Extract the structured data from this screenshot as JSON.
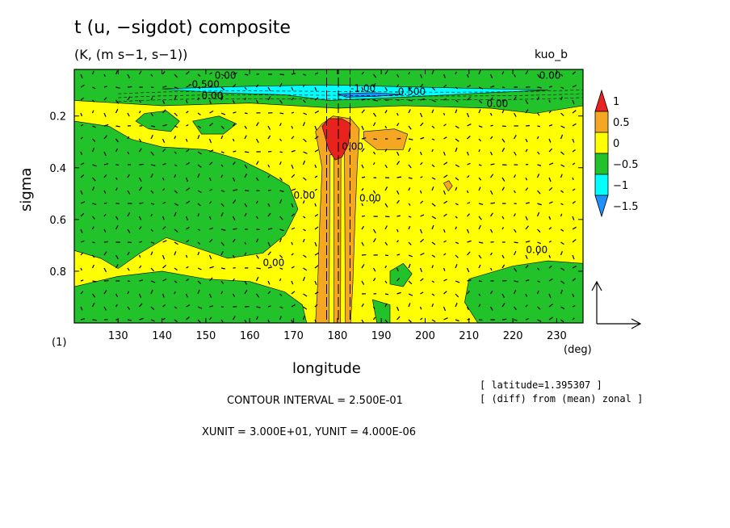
{
  "title": "t (u, −sigdot) composite",
  "subtitle": "(K, (m s−1, s−1))",
  "run_label": "kuo_b",
  "panel_label": "(1)",
  "xunit_label": "(deg)",
  "xlabel": "longitude",
  "ylabel": "sigma",
  "info_latitude": "[ latitude=1.395307 ]",
  "info_diff": "[ (diff) from (mean) zonal ]",
  "contour_interval": "CONTOUR INTERVAL = 2.500E-01",
  "units_line": "XUNIT = 3.000E+01, YUNIT = 4.000E-06",
  "colors": {
    "red": "#e8231e",
    "orange": "#f5a623",
    "yellow": "#ffff00",
    "green": "#22c22a",
    "cyan": "#00ffff",
    "blue": "#1e90ff"
  },
  "chart_data": {
    "type": "heatmap",
    "xlim": [
      120,
      236
    ],
    "ylim": [
      1.0,
      0.02
    ],
    "x_ticks": [
      "130",
      "140",
      "150",
      "160",
      "170",
      "180",
      "190",
      "200",
      "210",
      "220",
      "230"
    ],
    "x_tick_values": [
      130,
      140,
      150,
      160,
      170,
      180,
      190,
      200,
      210,
      220,
      230
    ],
    "y_ticks": [
      "0.2",
      "0.4",
      "0.6",
      "0.8"
    ],
    "y_tick_values": [
      0.2,
      0.4,
      0.6,
      0.8
    ],
    "colorbar_labels": [
      "1",
      "0.5",
      "0",
      "−0.5",
      "−1",
      "−1.5"
    ],
    "colorbar_levels": [
      1.0,
      0.5,
      0.0,
      -0.5,
      -1.0,
      -1.5
    ],
    "contour_labels": [
      "0.00",
      "-0.500",
      "0.00",
      "-1.00",
      "-0.500",
      "0.00",
      "0.00",
      "0.00",
      "0.00",
      "0.00",
      "0.00",
      "0.00"
    ],
    "regions": [
      {
        "level": "yellow",
        "poly": [
          [
            120,
            0.02
          ],
          [
            236,
            0.02
          ],
          [
            236,
            1.0
          ],
          [
            120,
            1.0
          ]
        ]
      },
      {
        "level": "green",
        "poly": [
          [
            120,
            0.02
          ],
          [
            236,
            0.02
          ],
          [
            236,
            0.16
          ],
          [
            225,
            0.19
          ],
          [
            215,
            0.17
          ],
          [
            195,
            0.16
          ],
          [
            180,
            0.17
          ],
          [
            160,
            0.15
          ],
          [
            140,
            0.16
          ],
          [
            120,
            0.14
          ]
        ]
      },
      {
        "level": "green",
        "poly": [
          [
            120,
            0.22
          ],
          [
            128,
            0.24
          ],
          [
            133,
            0.29
          ],
          [
            140,
            0.32
          ],
          [
            150,
            0.33
          ],
          [
            158,
            0.37
          ],
          [
            164,
            0.42
          ],
          [
            169,
            0.47
          ],
          [
            171,
            0.56
          ],
          [
            168,
            0.66
          ],
          [
            163,
            0.73
          ],
          [
            155,
            0.75
          ],
          [
            148,
            0.71
          ],
          [
            141,
            0.67
          ],
          [
            135,
            0.73
          ],
          [
            130,
            0.79
          ],
          [
            126,
            0.75
          ],
          [
            120,
            0.72
          ]
        ]
      },
      {
        "level": "green",
        "poly": [
          [
            120,
            0.86
          ],
          [
            130,
            0.82
          ],
          [
            140,
            0.8
          ],
          [
            150,
            0.83
          ],
          [
            160,
            0.84
          ],
          [
            168,
            0.88
          ],
          [
            172,
            0.93
          ],
          [
            173,
            1.0
          ],
          [
            120,
            1.0
          ]
        ]
      },
      {
        "level": "green",
        "poly": [
          [
            136,
            0.19
          ],
          [
            141,
            0.18
          ],
          [
            144,
            0.22
          ],
          [
            142,
            0.26
          ],
          [
            137,
            0.25
          ],
          [
            134,
            0.22
          ]
        ]
      },
      {
        "level": "green",
        "poly": [
          [
            147,
            0.22
          ],
          [
            153,
            0.2
          ],
          [
            157,
            0.23
          ],
          [
            154,
            0.27
          ],
          [
            149,
            0.27
          ]
        ]
      },
      {
        "level": "green",
        "poly": [
          [
            192,
            0.8
          ],
          [
            195,
            0.77
          ],
          [
            197,
            0.81
          ],
          [
            195,
            0.86
          ],
          [
            192,
            0.85
          ]
        ]
      },
      {
        "level": "green",
        "poly": [
          [
            188,
            0.91
          ],
          [
            192,
            0.93
          ],
          [
            192,
            1.0
          ],
          [
            189,
            1.0
          ]
        ]
      },
      {
        "level": "green",
        "poly": [
          [
            210,
            0.83
          ],
          [
            220,
            0.78
          ],
          [
            228,
            0.76
          ],
          [
            236,
            0.77
          ],
          [
            236,
            1.0
          ],
          [
            212,
            1.0
          ],
          [
            209,
            0.92
          ]
        ]
      },
      {
        "level": "cyan",
        "poly": [
          [
            140,
            0.095
          ],
          [
            160,
            0.085
          ],
          [
            178,
            0.08
          ],
          [
            198,
            0.088
          ],
          [
            215,
            0.095
          ],
          [
            228,
            0.1
          ],
          [
            215,
            0.11
          ],
          [
            198,
            0.125
          ],
          [
            185,
            0.135
          ],
          [
            178,
            0.14
          ],
          [
            168,
            0.118
          ],
          [
            152,
            0.11
          ]
        ]
      },
      {
        "level": "blue",
        "poly": [
          [
            180,
            0.115
          ],
          [
            188,
            0.11
          ],
          [
            195,
            0.117
          ],
          [
            188,
            0.125
          ],
          [
            182,
            0.127
          ]
        ]
      },
      {
        "level": "orange",
        "poly": [
          [
            175,
            0.26
          ],
          [
            176.5,
            0.23
          ],
          [
            179,
            0.2
          ],
          [
            183,
            0.21
          ],
          [
            185,
            0.25
          ],
          [
            184.5,
            0.4
          ],
          [
            184,
            0.6
          ],
          [
            183.5,
            0.85
          ],
          [
            183,
            1.0
          ],
          [
            175,
            1.0
          ],
          [
            175.5,
            0.85
          ],
          [
            176,
            0.6
          ],
          [
            176.5,
            0.4
          ]
        ]
      },
      {
        "level": "yellow",
        "poly": [
          [
            178.3,
            0.35
          ],
          [
            179.2,
            0.35
          ],
          [
            179.2,
            1.0
          ],
          [
            178.1,
            1.0
          ]
        ]
      },
      {
        "level": "yellow",
        "poly": [
          [
            180.8,
            0.33
          ],
          [
            181.6,
            0.33
          ],
          [
            181.8,
            1.0
          ],
          [
            180.7,
            1.0
          ]
        ]
      },
      {
        "level": "red",
        "poly": [
          [
            176.5,
            0.24
          ],
          [
            178,
            0.21
          ],
          [
            181,
            0.21
          ],
          [
            183,
            0.23
          ],
          [
            182.5,
            0.31
          ],
          [
            181,
            0.36
          ],
          [
            179.5,
            0.37
          ],
          [
            178,
            0.33
          ]
        ]
      },
      {
        "level": "orange",
        "poly": [
          [
            186,
            0.26
          ],
          [
            193,
            0.25
          ],
          [
            196,
            0.27
          ],
          [
            195,
            0.33
          ],
          [
            189,
            0.33
          ],
          [
            186,
            0.29
          ]
        ]
      },
      {
        "level": "orange",
        "poly": [
          [
            204.2,
            0.46
          ],
          [
            205.4,
            0.45
          ],
          [
            206.2,
            0.47
          ],
          [
            205.3,
            0.49
          ]
        ]
      }
    ]
  }
}
